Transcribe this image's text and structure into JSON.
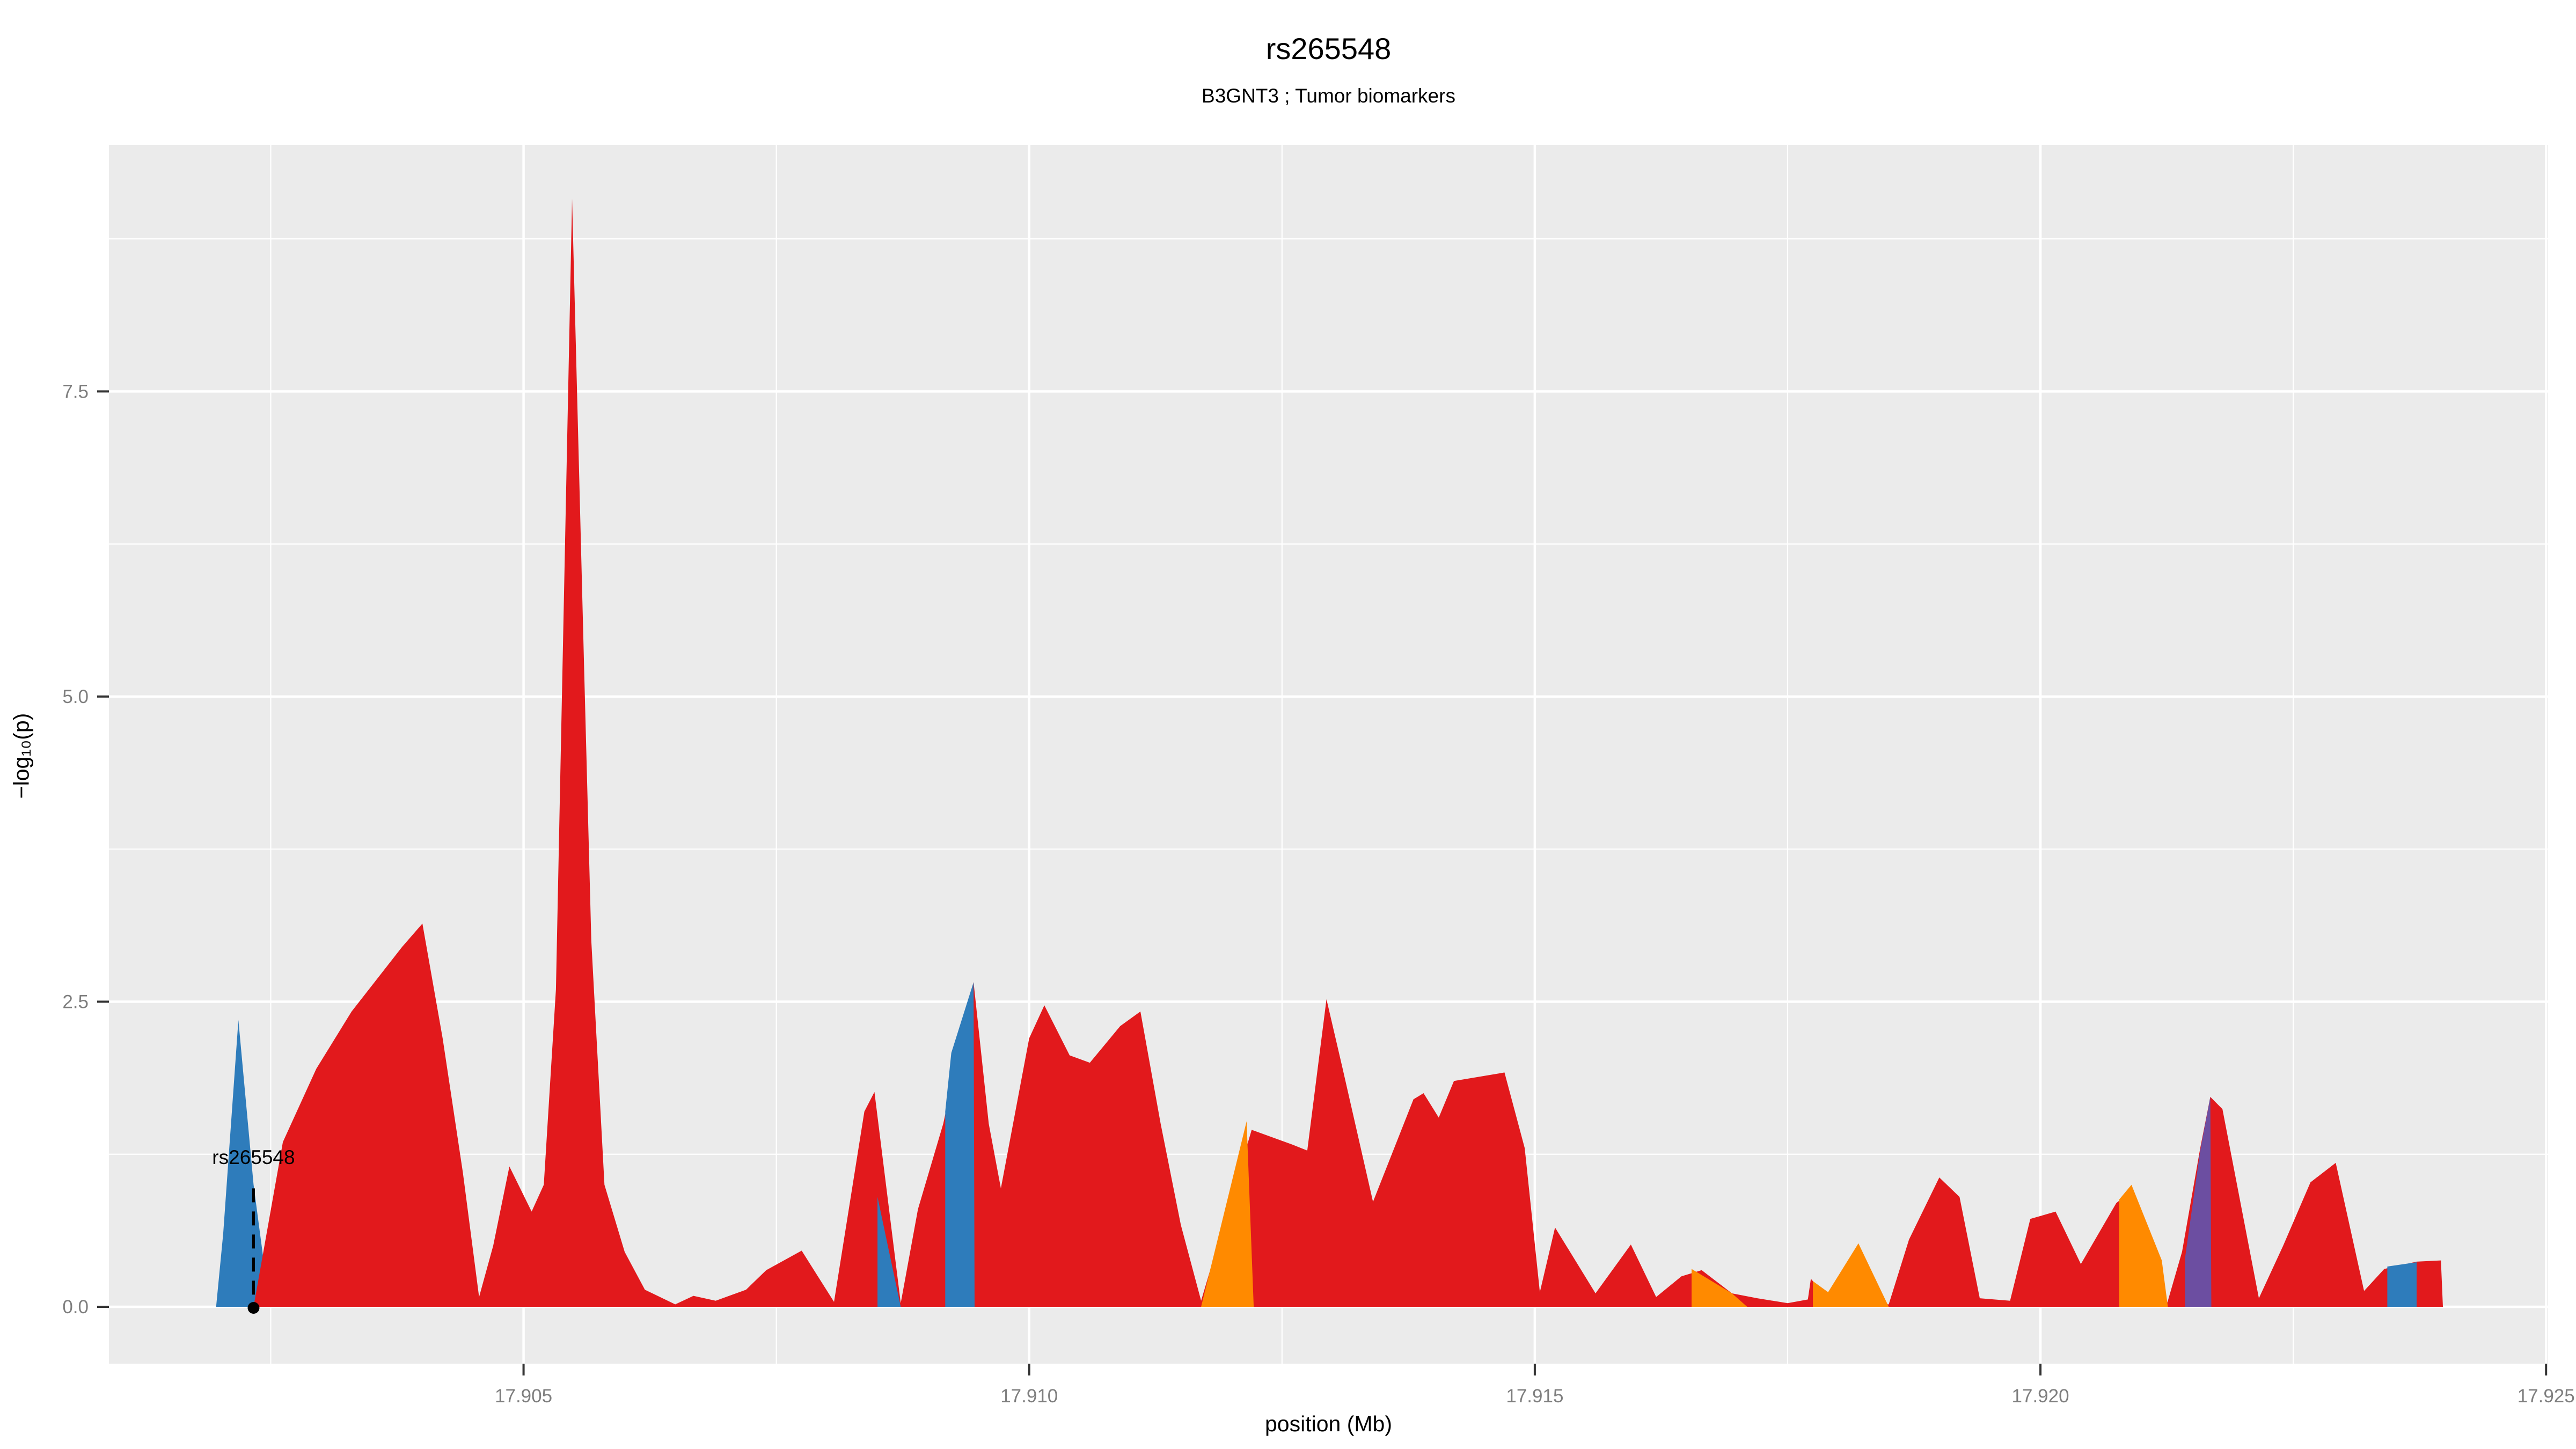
{
  "chart_data": {
    "type": "area",
    "title": "rs265548",
    "subtitle": "B3GNT3 ; Tumor biomarkers",
    "xlabel": "position (Mb)",
    "ylabel": "−log₁₀(p)",
    "legend_position": "none",
    "grid": "on",
    "panel": {
      "bg": "#EBEBEB",
      "grid_color": "#FFFFFF"
    },
    "colors": {
      "red": "#E2191C",
      "blue": "#2E7CBB",
      "orange": "#FF8A00",
      "purple": "#6C4EA1"
    },
    "text_colors": {
      "tick_label": "#7E7E7E",
      "tick_mark": "#333333",
      "title": "#000000"
    },
    "x_axis": {
      "min": 17.9009,
      "max": 17.92502,
      "tick_values": [
        17.905,
        17.91,
        17.915,
        17.92,
        17.925
      ],
      "tick_labels": [
        "17.905",
        "17.910",
        "17.915",
        "17.920",
        "17.925"
      ],
      "minor_ticks": [
        17.9025,
        17.9075,
        17.9125,
        17.9175,
        17.9225
      ]
    },
    "y_axis": {
      "min": -0.466,
      "max": 9.52,
      "tick_values": [
        0.0,
        2.5,
        5.0,
        7.5
      ],
      "tick_labels": [
        "0.0",
        "2.5",
        "5.0",
        "7.5"
      ],
      "minor_ticks": [
        1.25,
        3.75,
        6.25,
        8.75
      ]
    },
    "annotation": {
      "label": "rs265548",
      "x": 17.90233,
      "label_y": 1.17,
      "line_top": 0.97,
      "point_y": 0.0
    },
    "polygons": [
      {
        "id": "blue-1",
        "color_key": "blue",
        "points": [
          [
            17.90196,
            0
          ],
          [
            17.90203,
            0.6
          ],
          [
            17.90218,
            2.35
          ],
          [
            17.90233,
            1.0
          ],
          [
            17.90249,
            0
          ]
        ]
      },
      {
        "id": "red-main",
        "color_key": "red",
        "points": [
          [
            17.90233,
            0
          ],
          [
            17.90262,
            1.35
          ],
          [
            17.90295,
            1.95
          ],
          [
            17.9033,
            2.42
          ],
          [
            17.9038,
            2.95
          ],
          [
            17.904,
            3.14
          ],
          [
            17.9042,
            2.2
          ],
          [
            17.9044,
            1.1
          ],
          [
            17.90456,
            0.08
          ],
          [
            17.9047,
            0.5
          ],
          [
            17.90486,
            1.15
          ],
          [
            17.90508,
            0.78
          ],
          [
            17.9052,
            1.0
          ],
          [
            17.90532,
            2.6
          ],
          [
            17.90548,
            9.08
          ],
          [
            17.9056,
            5.2
          ],
          [
            17.90567,
            3.0
          ],
          [
            17.9058,
            1.0
          ],
          [
            17.906,
            0.45
          ],
          [
            17.9062,
            0.14
          ],
          [
            17.9065,
            0.02
          ],
          [
            17.90668,
            0.09
          ],
          [
            17.9069,
            0.05
          ],
          [
            17.9072,
            0.14
          ],
          [
            17.9074,
            0.3
          ],
          [
            17.90775,
            0.46
          ],
          [
            17.90807,
            0.04
          ],
          [
            17.90837,
            1.6
          ],
          [
            17.90847,
            1.76
          ],
          [
            17.90873,
            0.03
          ],
          [
            17.9089,
            0.8
          ],
          [
            17.90915,
            1.5
          ],
          [
            17.90945,
            2.66
          ],
          [
            17.9096,
            1.5
          ],
          [
            17.90972,
            0.97
          ],
          [
            17.91,
            2.2
          ],
          [
            17.91015,
            2.47
          ],
          [
            17.9104,
            2.06
          ],
          [
            17.9106,
            2.0
          ],
          [
            17.9109,
            2.3
          ],
          [
            17.9111,
            2.42
          ],
          [
            17.9113,
            1.5
          ],
          [
            17.9115,
            0.67
          ],
          [
            17.9117,
            0.05
          ],
          [
            17.9122,
            1.45
          ],
          [
            17.9126,
            1.33
          ],
          [
            17.91275,
            1.28
          ],
          [
            17.91294,
            2.52
          ],
          [
            17.9131,
            1.95
          ],
          [
            17.9134,
            0.86
          ],
          [
            17.9138,
            1.7
          ],
          [
            17.9139,
            1.75
          ],
          [
            17.91405,
            1.55
          ],
          [
            17.9142,
            1.85
          ],
          [
            17.9147,
            1.92
          ],
          [
            17.9149,
            1.3
          ],
          [
            17.91505,
            0.12
          ],
          [
            17.9152,
            0.65
          ],
          [
            17.9156,
            0.11
          ],
          [
            17.91595,
            0.51
          ],
          [
            17.9162,
            0.08
          ],
          [
            17.91645,
            0.25
          ],
          [
            17.91665,
            0.3
          ],
          [
            17.91695,
            0.11
          ],
          [
            17.9172,
            0.07
          ],
          [
            17.9175,
            0.03
          ],
          [
            17.9177,
            0.06
          ],
          [
            17.91773,
            0.23
          ],
          [
            17.9179,
            0.06
          ],
          [
            17.9185,
            0.02
          ],
          [
            17.9187,
            0.55
          ],
          [
            17.919,
            1.06
          ],
          [
            17.9192,
            0.9
          ],
          [
            17.9194,
            0.07
          ],
          [
            17.9197,
            0.05
          ],
          [
            17.9199,
            0.72
          ],
          [
            17.92015,
            0.78
          ],
          [
            17.9204,
            0.35
          ],
          [
            17.92075,
            0.85
          ],
          [
            17.9209,
            0.95
          ],
          [
            17.92125,
            0.02
          ],
          [
            17.9214,
            0.45
          ],
          [
            17.92158,
            1.3
          ],
          [
            17.92168,
            1.72
          ],
          [
            17.9218,
            1.62
          ],
          [
            17.92216,
            0.07
          ],
          [
            17.9224,
            0.5
          ],
          [
            17.92267,
            1.02
          ],
          [
            17.92292,
            1.18
          ],
          [
            17.9232,
            0.13
          ],
          [
            17.9234,
            0.31
          ],
          [
            17.92372,
            0.37
          ],
          [
            17.92396,
            0.38
          ],
          [
            17.92398,
            0
          ]
        ]
      },
      {
        "id": "blue-2",
        "color_key": "blue",
        "points": [
          [
            17.9085,
            0
          ],
          [
            17.9085,
            0.9
          ],
          [
            17.90873,
            0
          ]
        ]
      },
      {
        "id": "blue-3",
        "color_key": "blue",
        "points": [
          [
            17.90917,
            0
          ],
          [
            17.90917,
            1.6
          ],
          [
            17.90923,
            2.08
          ],
          [
            17.90945,
            2.66
          ],
          [
            17.90946,
            0
          ]
        ]
      },
      {
        "id": "orange-1",
        "color_key": "orange",
        "points": [
          [
            17.9117,
            0
          ],
          [
            17.91215,
            1.52
          ],
          [
            17.91222,
            0
          ]
        ]
      },
      {
        "id": "orange-2",
        "color_key": "orange",
        "points": [
          [
            17.91655,
            0
          ],
          [
            17.91655,
            0.31
          ],
          [
            17.91695,
            0.11
          ],
          [
            17.9171,
            0
          ]
        ]
      },
      {
        "id": "orange-3",
        "color_key": "orange",
        "points": [
          [
            17.91775,
            0
          ],
          [
            17.91775,
            0.21
          ],
          [
            17.9179,
            0.12
          ],
          [
            17.9182,
            0.52
          ],
          [
            17.9185,
            0
          ]
        ]
      },
      {
        "id": "orange-4",
        "color_key": "orange",
        "points": [
          [
            17.92078,
            0
          ],
          [
            17.92078,
            0.88
          ],
          [
            17.9209,
            1.0
          ],
          [
            17.9212,
            0.38
          ],
          [
            17.92126,
            0
          ]
        ]
      },
      {
        "id": "purple-1",
        "color_key": "purple",
        "points": [
          [
            17.92143,
            0
          ],
          [
            17.92143,
            0.4
          ],
          [
            17.92158,
            1.28
          ],
          [
            17.92168,
            1.72
          ],
          [
            17.92169,
            0
          ]
        ]
      },
      {
        "id": "blue-4",
        "color_key": "blue",
        "points": [
          [
            17.92343,
            0
          ],
          [
            17.92343,
            0.33
          ],
          [
            17.92372,
            0.365
          ],
          [
            17.92372,
            0
          ]
        ]
      }
    ]
  }
}
